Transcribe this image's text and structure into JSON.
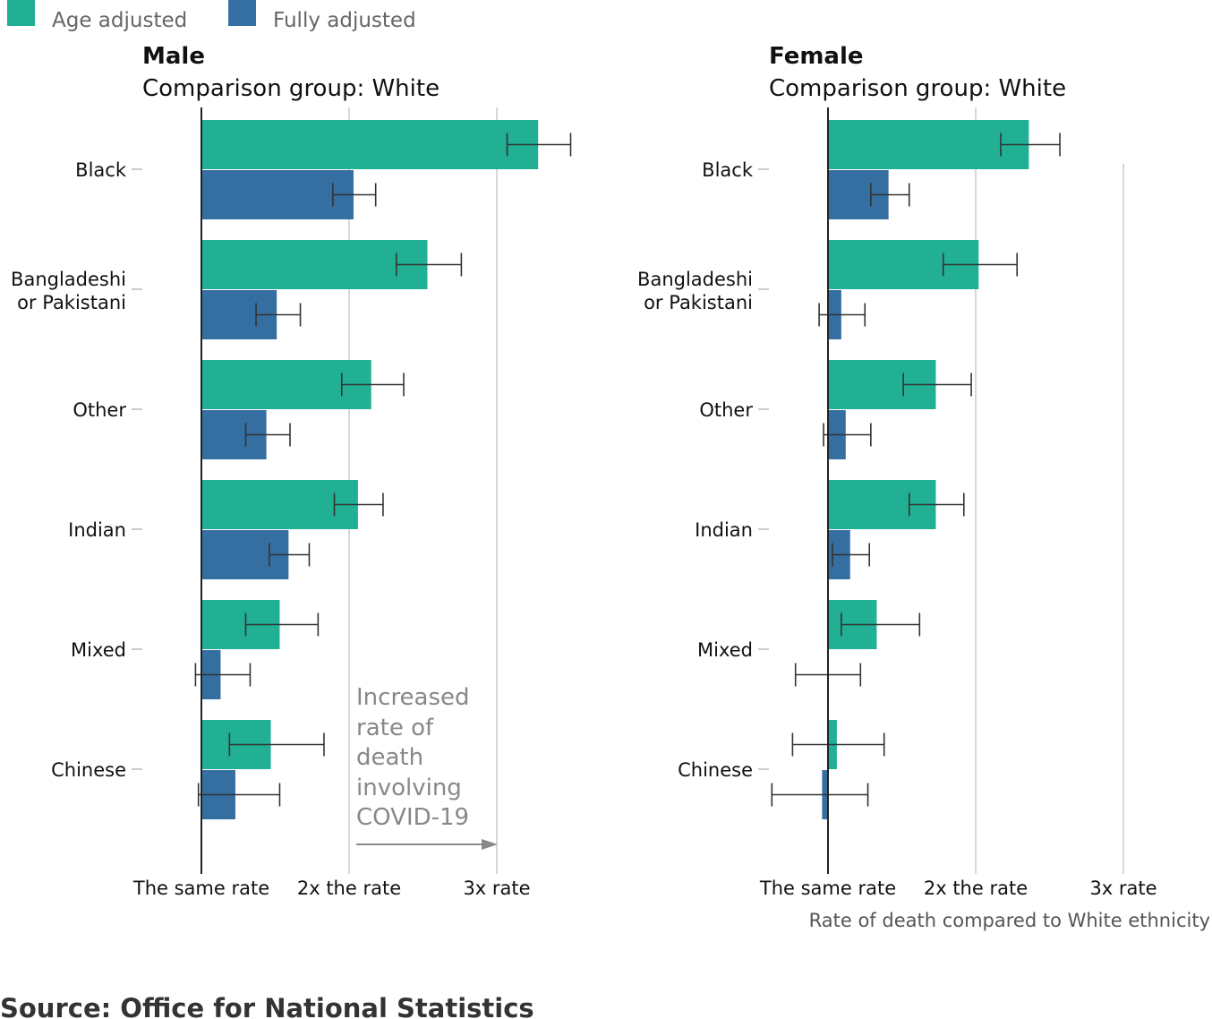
{
  "legend": [
    {
      "label": "Age adjusted",
      "color": "#22b094"
    },
    {
      "label": "Fully adjusted",
      "color": "#356fa1"
    }
  ],
  "source": "Source: Office for National Statistics",
  "axis_title": "Rate of death compared to White ethnicity",
  "annotation": [
    "Increased",
    "rate of",
    "death",
    "involving",
    "COVID-19"
  ],
  "chart_data": [
    {
      "type": "bar",
      "orientation": "horizontal",
      "title": "Male",
      "subtitle": "Comparison group: White",
      "categories": [
        "Black",
        "Bangladeshi or Pakistani",
        "Other",
        "Indian",
        "Mixed",
        "Chinese"
      ],
      "category_lines": [
        [
          "Black"
        ],
        [
          "Bangladeshi",
          "or Pakistani"
        ],
        [
          "Other"
        ],
        [
          "Indian"
        ],
        [
          "Mixed"
        ],
        [
          "Chinese"
        ]
      ],
      "x_ticks": [
        {
          "value": 1,
          "label": "The same rate"
        },
        {
          "value": 2,
          "label": "2x the rate"
        },
        {
          "value": 3,
          "label": "3x rate"
        }
      ],
      "xlim": [
        1,
        3
      ],
      "series": [
        {
          "name": "Age adjusted",
          "color": "#22b094",
          "values": [
            3.28,
            2.53,
            2.15,
            2.06,
            1.53,
            1.47
          ],
          "ci_low": [
            3.07,
            2.32,
            1.95,
            1.9,
            1.3,
            1.19
          ],
          "ci_high": [
            3.5,
            2.76,
            2.37,
            2.23,
            1.79,
            1.83
          ]
        },
        {
          "name": "Fully adjusted",
          "color": "#356fa1",
          "values": [
            2.03,
            1.51,
            1.44,
            1.59,
            1.13,
            1.23
          ],
          "ci_low": [
            1.89,
            1.37,
            1.3,
            1.46,
            0.96,
            0.98
          ],
          "ci_high": [
            2.18,
            1.67,
            1.6,
            1.73,
            1.33,
            1.53
          ]
        }
      ]
    },
    {
      "type": "bar",
      "orientation": "horizontal",
      "title": "Female",
      "subtitle": "Comparison group: White",
      "categories": [
        "Black",
        "Bangladeshi or Pakistani",
        "Other",
        "Indian",
        "Mixed",
        "Chinese"
      ],
      "category_lines": [
        [
          "Black"
        ],
        [
          "Bangladeshi",
          "or Pakistani"
        ],
        [
          "Other"
        ],
        [
          "Indian"
        ],
        [
          "Mixed"
        ],
        [
          "Chinese"
        ]
      ],
      "x_ticks": [
        {
          "value": 1,
          "label": "The same rate"
        },
        {
          "value": 2,
          "label": "2x the rate"
        },
        {
          "value": 3,
          "label": "3x rate"
        }
      ],
      "xlim": [
        1,
        3
      ],
      "xlabel": "Rate of death compared to White ethnicity",
      "series": [
        {
          "name": "Age adjusted",
          "color": "#22b094",
          "values": [
            2.36,
            2.02,
            1.73,
            1.73,
            1.33,
            1.06
          ],
          "ci_low": [
            2.17,
            1.78,
            1.51,
            1.55,
            1.09,
            0.76
          ],
          "ci_high": [
            2.57,
            2.28,
            1.97,
            1.92,
            1.62,
            1.38
          ]
        },
        {
          "name": "Fully adjusted",
          "color": "#356fa1",
          "values": [
            1.41,
            1.09,
            1.12,
            1.15,
            1.0,
            0.96
          ],
          "ci_low": [
            1.29,
            0.94,
            0.97,
            1.03,
            0.78,
            0.62
          ],
          "ci_high": [
            1.55,
            1.25,
            1.29,
            1.28,
            1.22,
            1.27
          ]
        }
      ]
    }
  ]
}
